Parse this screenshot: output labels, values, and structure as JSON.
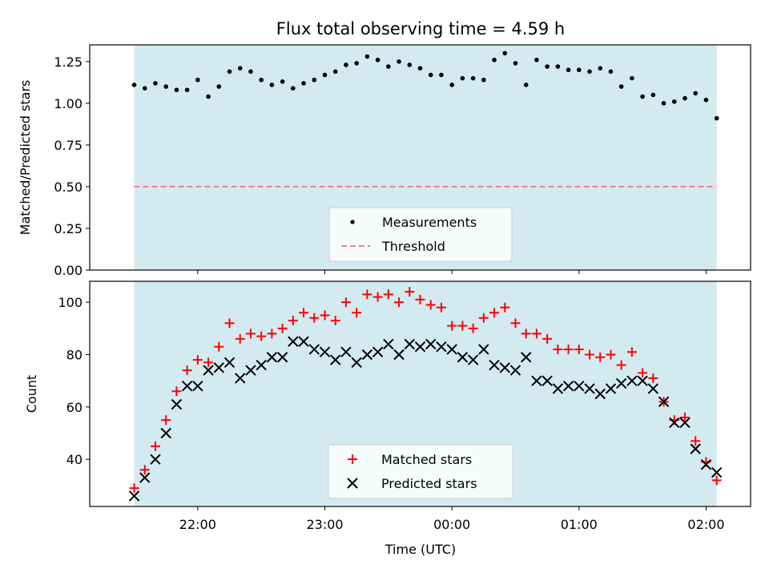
{
  "chart_data": [
    {
      "type": "scatter",
      "title": "Flux total observing time = 4.59 h",
      "xlabel": "",
      "ylabel": "Matched/Predicted stars",
      "ylim": [
        0,
        1.35
      ],
      "yticks": [
        "0.00",
        "0.25",
        "0.50",
        "0.75",
        "1.00",
        "1.25"
      ],
      "x_is_time_utc": true,
      "shaded_span": [
        "21:30",
        "02:05"
      ],
      "shade_color": "#d3eaf0",
      "threshold": 0.5,
      "threshold_color": "#f08080",
      "point_color": "#000000",
      "legend": {
        "position": "lower center",
        "items": [
          "Measurements",
          "Threshold"
        ]
      },
      "series": [
        {
          "name": "Measurements",
          "x": [
            "21:30",
            "21:35",
            "21:40",
            "21:45",
            "21:50",
            "21:55",
            "22:00",
            "22:05",
            "22:10",
            "22:15",
            "22:20",
            "22:25",
            "22:30",
            "22:35",
            "22:40",
            "22:45",
            "22:50",
            "22:55",
            "23:00",
            "23:05",
            "23:10",
            "23:15",
            "23:20",
            "23:25",
            "23:30",
            "23:35",
            "23:40",
            "23:45",
            "23:50",
            "23:55",
            "00:00",
            "00:05",
            "00:10",
            "00:15",
            "00:20",
            "00:25",
            "00:30",
            "00:35",
            "00:40",
            "00:45",
            "00:50",
            "00:55",
            "01:00",
            "01:05",
            "01:10",
            "01:15",
            "01:20",
            "01:25",
            "01:30",
            "01:35",
            "01:40",
            "01:45",
            "01:50",
            "01:55",
            "02:00",
            "02:05"
          ],
          "y": [
            1.11,
            1.09,
            1.12,
            1.1,
            1.08,
            1.08,
            1.14,
            1.04,
            1.1,
            1.19,
            1.21,
            1.19,
            1.14,
            1.11,
            1.13,
            1.09,
            1.12,
            1.14,
            1.17,
            1.19,
            1.23,
            1.24,
            1.28,
            1.26,
            1.22,
            1.25,
            1.23,
            1.21,
            1.17,
            1.17,
            1.11,
            1.15,
            1.15,
            1.14,
            1.26,
            1.3,
            1.24,
            1.11,
            1.26,
            1.22,
            1.22,
            1.2,
            1.2,
            1.19,
            1.21,
            1.19,
            1.1,
            1.15,
            1.04,
            1.05,
            1.0,
            1.01,
            1.03,
            1.06,
            1.02,
            0.91
          ]
        },
        {
          "name": "Threshold",
          "y": 0.5
        }
      ]
    },
    {
      "type": "scatter",
      "title": "",
      "xlabel": "Time (UTC)",
      "ylabel": "Count",
      "ylim": [
        22,
        108
      ],
      "yticks": [
        "40",
        "60",
        "80",
        "100"
      ],
      "xticks": [
        "22:00",
        "23:00",
        "00:00",
        "01:00",
        "02:00"
      ],
      "shaded_span": [
        "21:30",
        "02:05"
      ],
      "shade_color": "#d3eaf0",
      "legend": {
        "position": "lower center",
        "items": [
          "Matched stars",
          "Predicted stars"
        ]
      },
      "x": [
        "21:30",
        "21:35",
        "21:40",
        "21:45",
        "21:50",
        "21:55",
        "22:00",
        "22:05",
        "22:10",
        "22:15",
        "22:20",
        "22:25",
        "22:30",
        "22:35",
        "22:40",
        "22:45",
        "22:50",
        "22:55",
        "23:00",
        "23:05",
        "23:10",
        "23:15",
        "23:20",
        "23:25",
        "23:30",
        "23:35",
        "23:40",
        "23:45",
        "23:50",
        "23:55",
        "00:00",
        "00:05",
        "00:10",
        "00:15",
        "00:20",
        "00:25",
        "00:30",
        "00:35",
        "00:40",
        "00:45",
        "00:50",
        "00:55",
        "01:00",
        "01:05",
        "01:10",
        "01:15",
        "01:20",
        "01:25",
        "01:30",
        "01:35",
        "01:40",
        "01:45",
        "01:50",
        "01:55",
        "02:00",
        "02:05"
      ],
      "series": [
        {
          "name": "Matched stars",
          "marker": "+",
          "color": "#ff0000",
          "values": [
            29,
            36,
            45,
            55,
            66,
            74,
            78,
            77,
            83,
            92,
            86,
            88,
            87,
            88,
            90,
            93,
            96,
            94,
            95,
            93,
            100,
            96,
            103,
            102,
            103,
            100,
            104,
            101,
            99,
            98,
            91,
            91,
            90,
            94,
            96,
            98,
            92,
            88,
            88,
            86,
            82,
            82,
            82,
            80,
            79,
            80,
            76,
            81,
            73,
            71,
            62,
            55,
            56,
            47,
            39,
            32
          ]
        },
        {
          "name": "Predicted stars",
          "marker": "x",
          "color": "#000000",
          "values": [
            26,
            33,
            40,
            50,
            61,
            68,
            68,
            74,
            75,
            77,
            71,
            74,
            76,
            79,
            79,
            85,
            85,
            82,
            81,
            78,
            81,
            77,
            80,
            81,
            84,
            80,
            84,
            83,
            84,
            83,
            82,
            79,
            78,
            82,
            76,
            75,
            74,
            79,
            70,
            70,
            67,
            68,
            68,
            67,
            65,
            67,
            69,
            70,
            70,
            67,
            62,
            54,
            54,
            44,
            38,
            35
          ]
        }
      ]
    }
  ]
}
